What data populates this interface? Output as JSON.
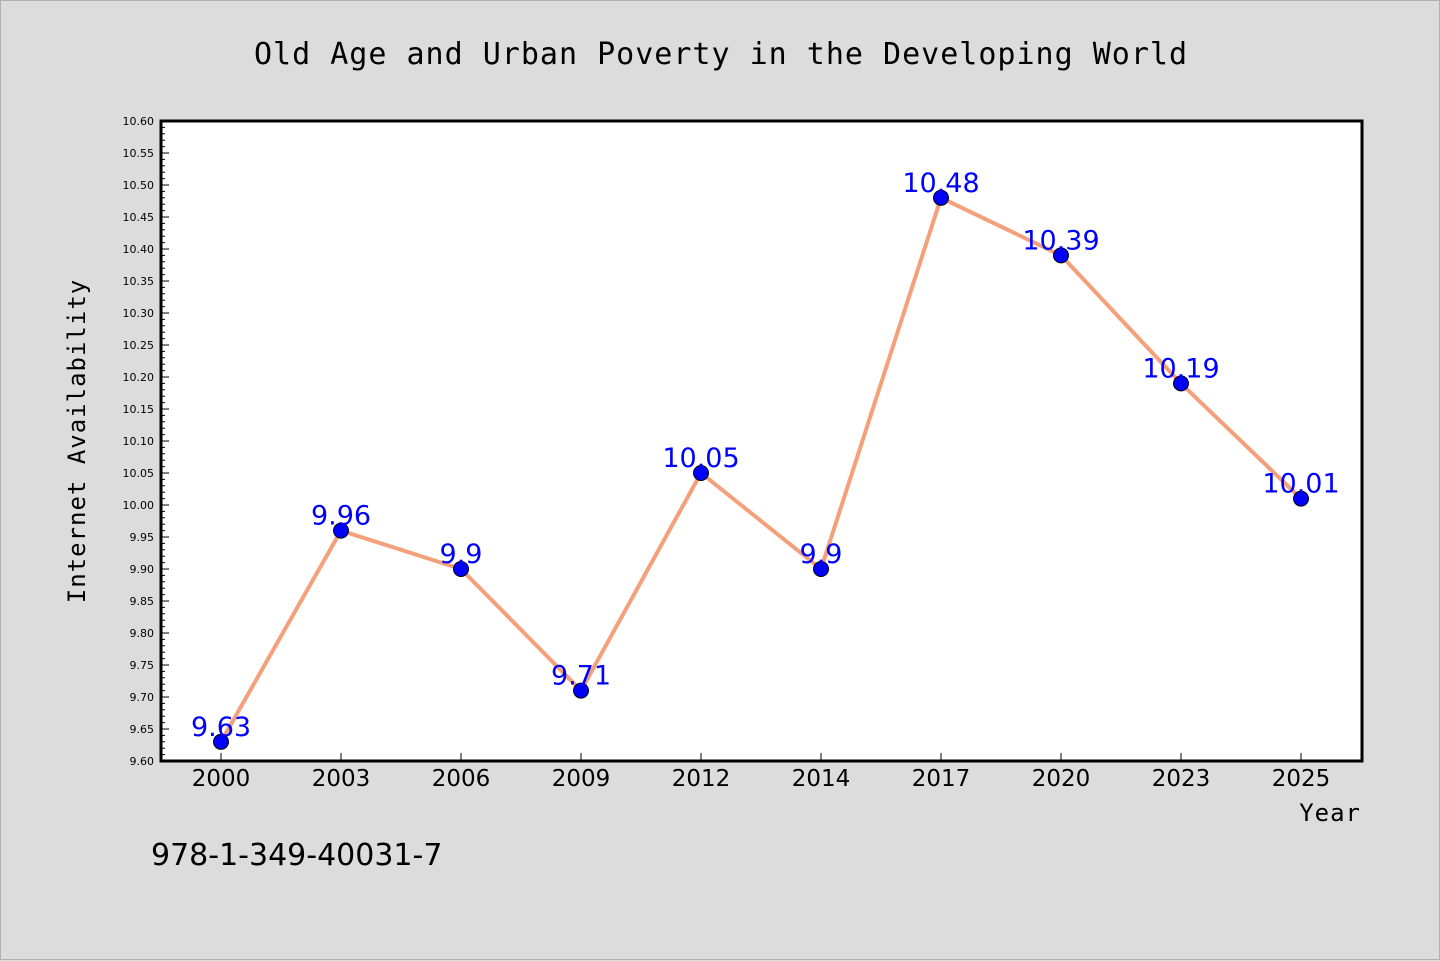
{
  "chart_data": {
    "type": "line",
    "title": "Old Age and Urban Poverty in the Developing World",
    "xlabel": "Year",
    "ylabel": "Internet Availability",
    "categories": [
      "2000",
      "2003",
      "2006",
      "2009",
      "2012",
      "2014",
      "2017",
      "2020",
      "2023",
      "2025"
    ],
    "series": [
      {
        "values": [
          9.63,
          9.96,
          9.9,
          9.71,
          10.05,
          9.9,
          10.48,
          10.39,
          10.19,
          10.01
        ],
        "labels": [
          "9.63",
          "9.96",
          "9.9",
          "9.71",
          "10.05",
          "9.9",
          "10.48",
          "10.39",
          "10.19",
          "10.01"
        ]
      }
    ],
    "ylim": [
      9.6,
      10.6
    ],
    "yticks": [
      "9.60",
      "9.65",
      "9.70",
      "9.75",
      "9.80",
      "9.85",
      "9.90",
      "9.95",
      "10.00",
      "10.05",
      "10.10",
      "10.15",
      "10.20",
      "10.25",
      "10.30",
      "10.35",
      "10.40",
      "10.45",
      "10.50",
      "10.55",
      "10.60"
    ],
    "grid": false,
    "legend": "none",
    "line_color": "#f4a07a",
    "marker_color": "#0000ff",
    "label_color": "#0000ff"
  },
  "footer": {
    "code": "978-1-349-40031-7"
  },
  "colors": {
    "background": "#dcdcdc",
    "plot_background": "#ffffff"
  }
}
